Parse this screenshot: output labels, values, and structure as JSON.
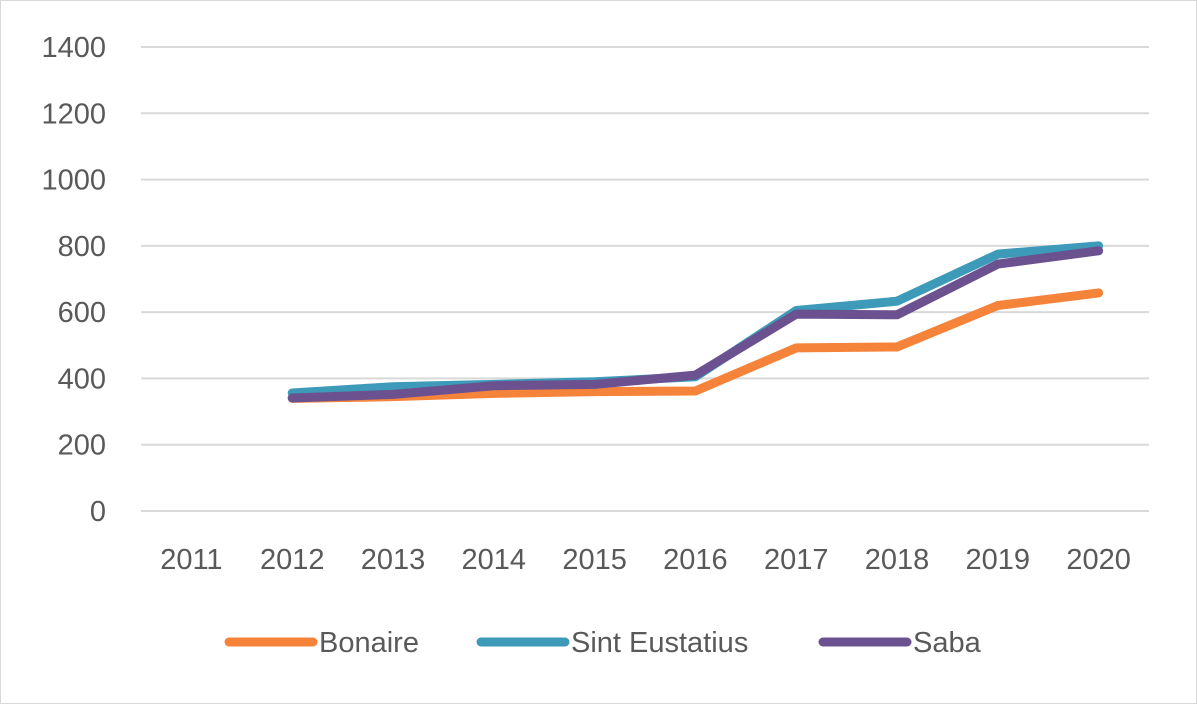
{
  "chart_data": {
    "type": "line",
    "title": "",
    "xlabel": "",
    "ylabel": "",
    "categories": [
      "2011",
      "2012",
      "2013",
      "2014",
      "2015",
      "2016",
      "2017",
      "2018",
      "2019",
      "2020"
    ],
    "ylim": [
      0,
      1400
    ],
    "yticks": [
      "0",
      "200",
      "400",
      "600",
      "800",
      "1000",
      "1200",
      "1400"
    ],
    "grid": true,
    "legend": "bottom",
    "series": [
      {
        "name": "Bonaire",
        "color": "#f5833a",
        "values": [
          null,
          340,
          345,
          355,
          360,
          362,
          492,
          495,
          620,
          658
        ]
      },
      {
        "name": "Sint Eustatius",
        "color": "#3d9ab8",
        "values": [
          null,
          356,
          375,
          382,
          390,
          405,
          605,
          633,
          775,
          800
        ]
      },
      {
        "name": "Saba",
        "color": "#6c5190",
        "values": [
          null,
          341,
          352,
          378,
          382,
          410,
          594,
          592,
          745,
          785
        ]
      }
    ]
  }
}
